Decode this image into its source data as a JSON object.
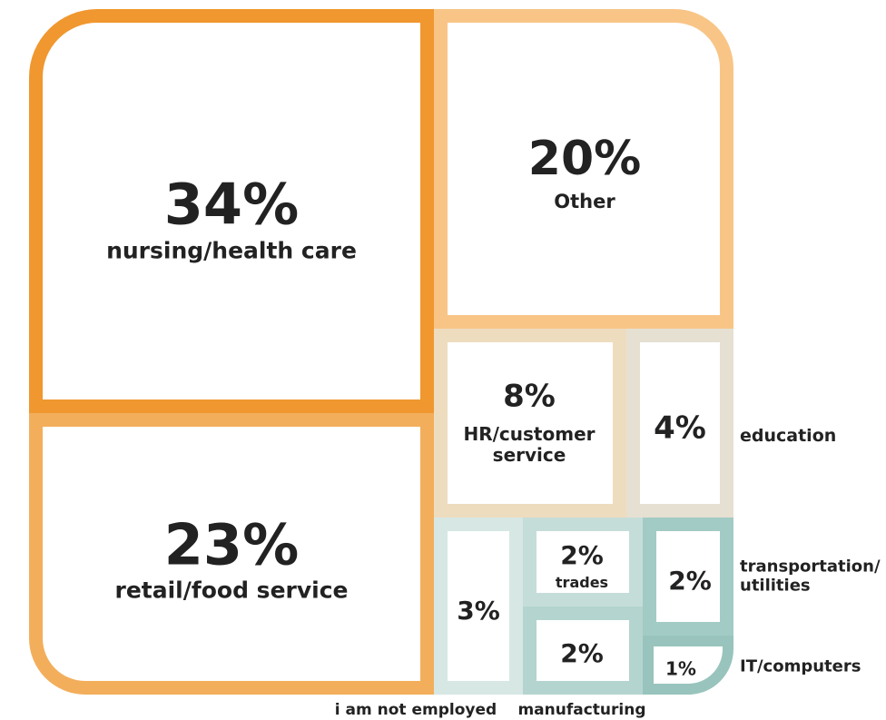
{
  "chart_data": {
    "type": "treemap",
    "categories": [
      "nursing/health care",
      "retail/food service",
      "Other",
      "HR/customer service",
      "education",
      "i am not employed",
      "trades",
      "manufacturing",
      "transportation/ utilities",
      "IT/computers"
    ],
    "values": [
      34,
      23,
      20,
      8,
      4,
      3,
      2,
      2,
      2,
      1
    ],
    "value_labels": [
      "34%",
      "23%",
      "20%",
      "8%",
      "4%",
      "3%",
      "2%",
      "2%",
      "2%",
      "1%"
    ],
    "colors": [
      "#f0972f",
      "#f3ae5b",
      "#f8c587",
      "#eedcbf",
      "#e6e0d2",
      "#d6e7e4",
      "#c5ddd9",
      "#b4d4cf",
      "#a3cbc5",
      "#98c4bd"
    ]
  }
}
